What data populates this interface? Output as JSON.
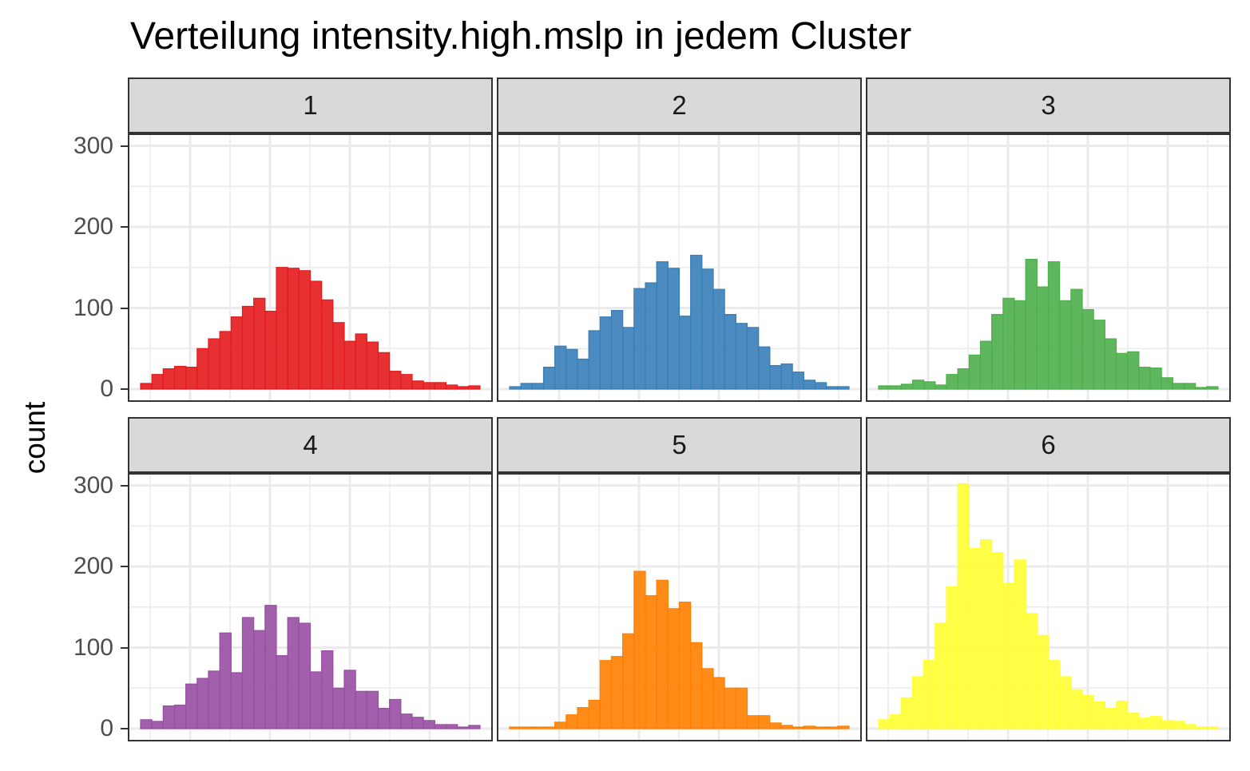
{
  "chart_data": {
    "type": "bar",
    "title": "Verteilung intensity.high.mslp in jedem Cluster",
    "xlabel": "",
    "ylabel": "count",
    "ylim": [
      0,
      330
    ],
    "yticks": [
      "0",
      "100",
      "200",
      "300"
    ],
    "grid": true,
    "legend": "none",
    "panels": [
      {
        "label": "1",
        "color": "#e41a1c",
        "values": [
          7,
          18,
          25,
          28,
          27,
          50,
          62,
          71,
          89,
          102,
          112,
          96,
          150,
          149,
          146,
          133,
          110,
          82,
          59,
          68,
          58,
          45,
          22,
          18,
          10,
          8,
          8,
          5,
          3,
          4
        ]
      },
      {
        "label": "2",
        "color": "#377eb8",
        "values": [
          3,
          7,
          7,
          27,
          53,
          49,
          37,
          72,
          89,
          97,
          76,
          124,
          131,
          157,
          149,
          90,
          165,
          148,
          123,
          92,
          81,
          76,
          52,
          29,
          31,
          21,
          11,
          8,
          3,
          3
        ]
      },
      {
        "label": "3",
        "color": "#4daf4a",
        "values": [
          4,
          4,
          6,
          11,
          9,
          5,
          18,
          25,
          42,
          59,
          92,
          112,
          109,
          160,
          126,
          157,
          109,
          123,
          98,
          85,
          62,
          44,
          46,
          27,
          26,
          14,
          7,
          7,
          2,
          3
        ]
      },
      {
        "label": "4",
        "color": "#984ea3",
        "values": [
          11,
          9,
          28,
          29,
          55,
          62,
          71,
          118,
          69,
          137,
          121,
          152,
          90,
          137,
          130,
          70,
          96,
          50,
          72,
          46,
          46,
          25,
          36,
          18,
          14,
          10,
          5,
          5,
          2,
          4
        ]
      },
      {
        "label": "5",
        "color": "#ff7f00",
        "values": [
          2,
          2,
          2,
          2,
          8,
          17,
          26,
          35,
          84,
          89,
          117,
          194,
          164,
          183,
          148,
          156,
          106,
          74,
          63,
          50,
          50,
          16,
          16,
          7,
          4,
          2,
          3,
          2,
          2,
          3
        ]
      },
      {
        "label": "6",
        "color": "#ffff33",
        "values": [
          11,
          17,
          38,
          64,
          84,
          130,
          175,
          302,
          222,
          233,
          217,
          179,
          208,
          142,
          115,
          84,
          64,
          48,
          41,
          33,
          25,
          34,
          19,
          13,
          15,
          10,
          9,
          5,
          2,
          2
        ]
      }
    ]
  }
}
